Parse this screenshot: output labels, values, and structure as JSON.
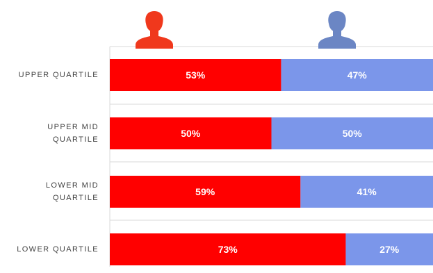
{
  "chart_data": {
    "type": "bar",
    "orientation": "horizontal",
    "stacked": "percent",
    "categories": [
      [
        "UPPER QUARTILE"
      ],
      [
        "UPPER MID",
        "QUARTILE"
      ],
      [
        "LOWER MID",
        "QUARTILE"
      ],
      [
        "LOWER QUARTILE"
      ]
    ],
    "series": [
      {
        "values": [
          53,
          50,
          59,
          73
        ],
        "labels": [
          "53%",
          "50%",
          "59%",
          "73%"
        ],
        "color": "#ff0000",
        "icon": "person-silhouette-icon",
        "icon_color": "#f0381c"
      },
      {
        "values": [
          47,
          50,
          41,
          27
        ],
        "labels": [
          "47%",
          "50%",
          "41%",
          "27%"
        ],
        "color": "#7b96ea",
        "icon": "person-silhouette-icon",
        "icon_color": "#6b86c4"
      }
    ],
    "xlim": [
      0,
      100
    ],
    "grid": true,
    "legend": "icons above bars"
  }
}
